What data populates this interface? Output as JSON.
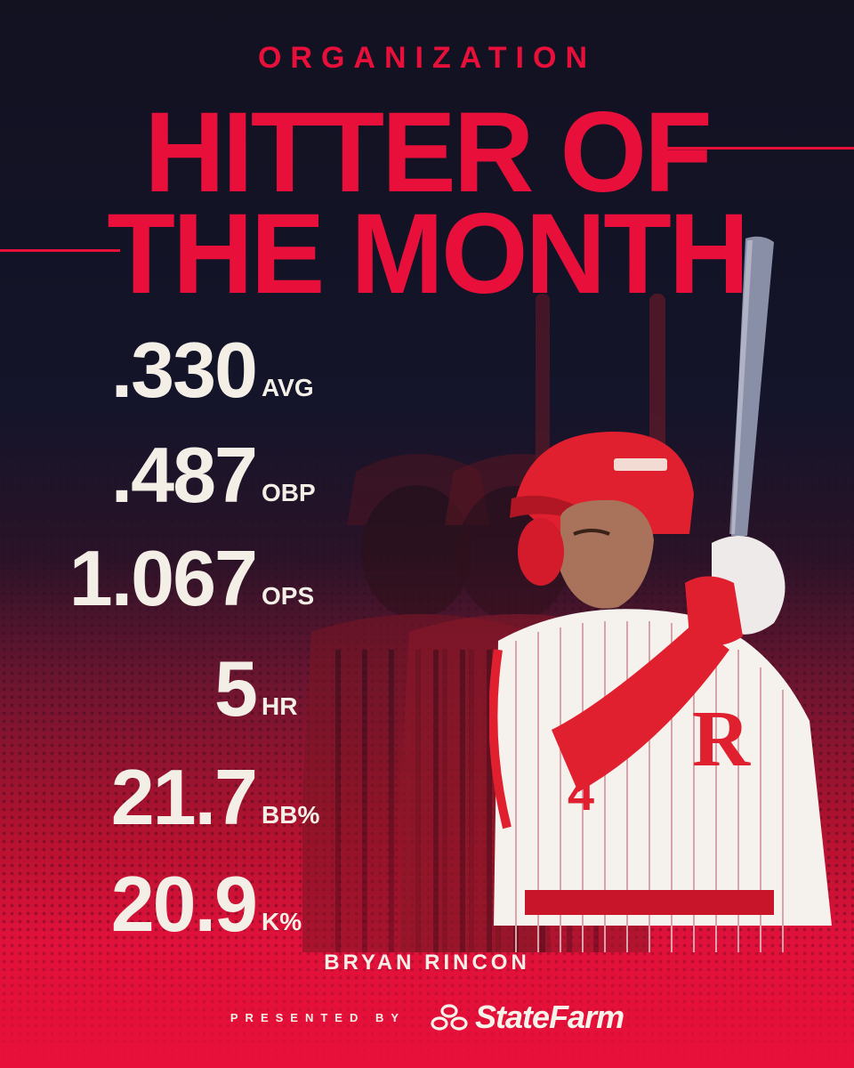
{
  "eyebrow": "ORGANIZATION",
  "headline": {
    "line1": "HITTER OF",
    "line2": "THE MONTH"
  },
  "stats": [
    {
      "value": ".330",
      "label": "AVG"
    },
    {
      "value": ".487",
      "label": "OBP"
    },
    {
      "value": "1.067",
      "label": "OPS"
    },
    {
      "value": "5",
      "label": "HR"
    },
    {
      "value": "21.7",
      "label": "BB%"
    },
    {
      "value": "20.9",
      "label": "K%"
    }
  ],
  "player_name": "BRYAN RINCON",
  "sponsor": {
    "presented_by": "PRESENTED BY",
    "brand": "StateFarm"
  },
  "colors": {
    "accent": "#e8103a",
    "dark": "#131322",
    "text": "#f3efe6"
  },
  "icons": {
    "sponsor_logo": "state-farm-logo-icon"
  }
}
